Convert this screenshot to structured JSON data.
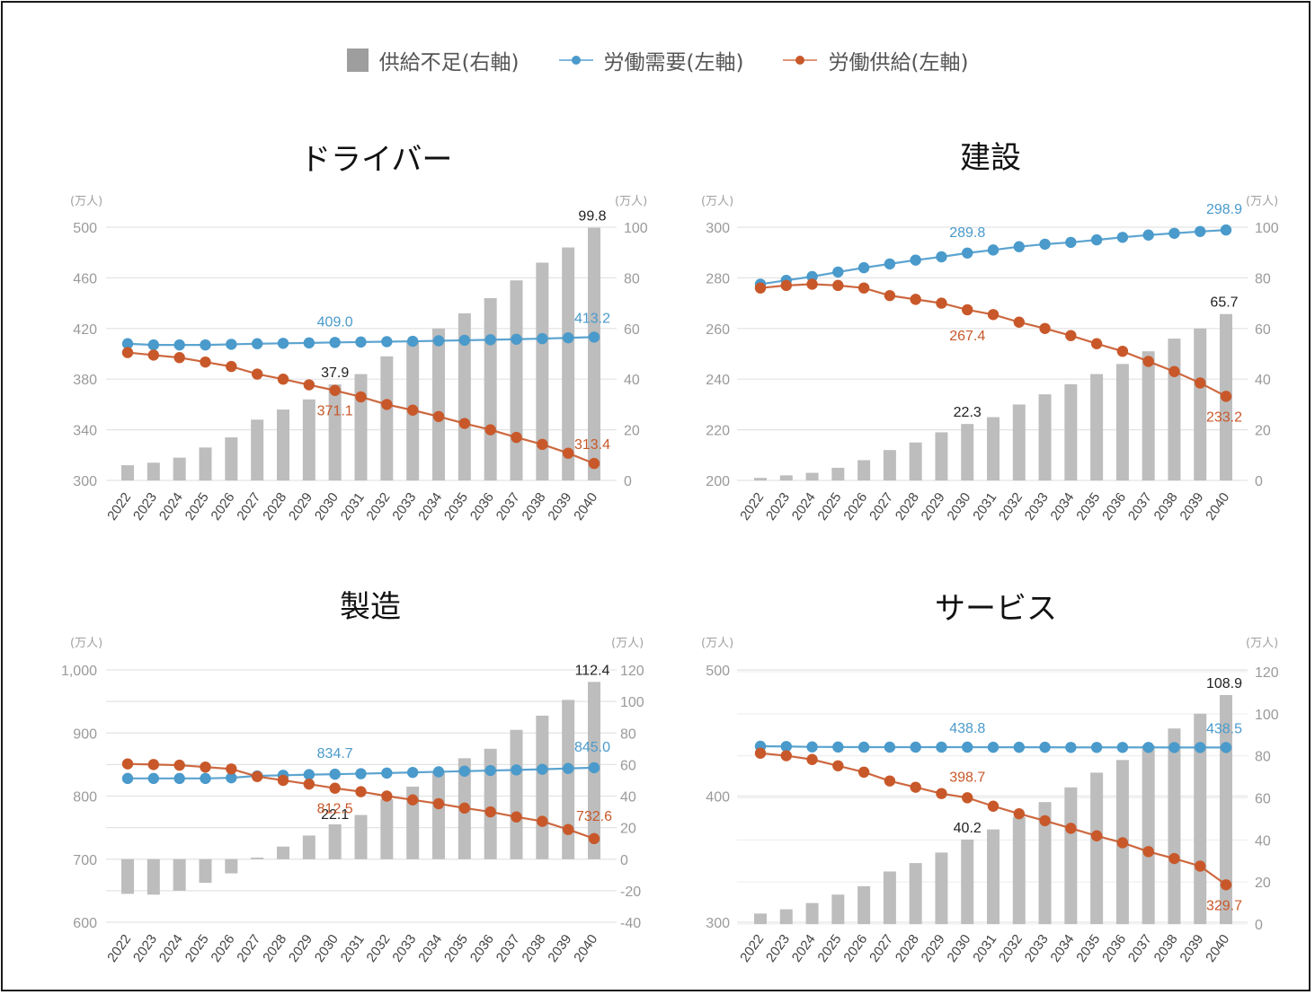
{
  "legend": [
    {
      "label": "供給不足(右軸)",
      "kind": "bar",
      "color": "#9e9e9e"
    },
    {
      "label": "労働需要(左軸)",
      "kind": "line",
      "color": "#4a9acb"
    },
    {
      "label": "労働供給(左軸)",
      "kind": "line",
      "color": "#c8582a"
    }
  ],
  "colors": {
    "bar": "#bdbdbd",
    "demand": "#4a9acb",
    "supply": "#c8582a",
    "label_dark": "#222222",
    "grid": "#e3e3e3"
  },
  "chart_data": [
    {
      "type": "bar+line",
      "title": "ドライバー",
      "left_unit": "(万人)",
      "right_unit": "(万人)",
      "categories": [
        "2022",
        "2023",
        "2024",
        "2025",
        "2026",
        "2027",
        "2028",
        "2029",
        "2030",
        "2031",
        "2032",
        "2033",
        "2034",
        "2035",
        "2036",
        "2037",
        "2038",
        "2039",
        "2040"
      ],
      "left_ylim": [
        300,
        500
      ],
      "left_ticks": [
        300,
        340,
        380,
        420,
        460,
        500
      ],
      "left_tick_labels": [
        "300",
        "340",
        "380",
        "420",
        "460",
        "500"
      ],
      "right_ylim": [
        0,
        100
      ],
      "right_ticks": [
        0,
        20,
        40,
        60,
        80,
        100
      ],
      "right_tick_labels": [
        "0",
        "20",
        "40",
        "60",
        "80",
        "100"
      ],
      "grid": true,
      "series": [
        {
          "name": "供給不足(右軸)",
          "axis": "right",
          "kind": "bar",
          "values": [
            6,
            7,
            9,
            13,
            17,
            24,
            28,
            32,
            37.9,
            42,
            49,
            55,
            60,
            66,
            72,
            79,
            86,
            92,
            99.8
          ]
        },
        {
          "name": "労働需要(左軸)",
          "axis": "left",
          "kind": "line",
          "values": [
            408,
            407,
            407,
            407,
            407.5,
            408,
            408.3,
            408.6,
            409.0,
            409.3,
            409.6,
            409.9,
            410.3,
            410.7,
            411.1,
            411.5,
            412,
            412.6,
            413.2
          ]
        },
        {
          "name": "労働供給(左軸)",
          "axis": "left",
          "kind": "line",
          "values": [
            401,
            399,
            397,
            393.5,
            390,
            384,
            380,
            375.5,
            371.1,
            366,
            360,
            355.5,
            350.5,
            345,
            340,
            334,
            328.5,
            321.5,
            313.4
          ]
        }
      ],
      "annotations": [
        {
          "series": 0,
          "index": 8,
          "text": "37.9"
        },
        {
          "series": 0,
          "index": 18,
          "text": "99.8"
        },
        {
          "series": 1,
          "index": 8,
          "text": "409.0"
        },
        {
          "series": 1,
          "index": 18,
          "text": "413.2"
        },
        {
          "series": 2,
          "index": 8,
          "text": "371.1"
        },
        {
          "series": 2,
          "index": 18,
          "text": "313.4"
        }
      ]
    },
    {
      "type": "bar+line",
      "title": "建設",
      "left_unit": "(万人)",
      "right_unit": "(万人)",
      "categories": [
        "2022",
        "2023",
        "2024",
        "2025",
        "2026",
        "2027",
        "2028",
        "2029",
        "2030",
        "2031",
        "2032",
        "2033",
        "2034",
        "2035",
        "2036",
        "2037",
        "2038",
        "2039",
        "2040"
      ],
      "left_ylim": [
        200,
        300
      ],
      "left_ticks": [
        200,
        220,
        240,
        260,
        280,
        300
      ],
      "left_tick_labels": [
        "200",
        "220",
        "240",
        "260",
        "280",
        "300"
      ],
      "right_ylim": [
        0,
        100
      ],
      "right_ticks": [
        0,
        20,
        40,
        60,
        80,
        100
      ],
      "right_tick_labels": [
        "0",
        "20",
        "40",
        "60",
        "80",
        "100"
      ],
      "grid": true,
      "series": [
        {
          "name": "供給不足(右軸)",
          "axis": "right",
          "kind": "bar",
          "values": [
            1,
            2,
            3,
            5,
            8,
            12,
            15,
            19,
            22.3,
            25,
            30,
            34,
            38,
            42,
            46,
            51,
            56,
            60,
            65.7
          ]
        },
        {
          "name": "労働需要(左軸)",
          "axis": "left",
          "kind": "line",
          "values": [
            277.5,
            279,
            280.5,
            282.3,
            284,
            285.5,
            287,
            288.3,
            289.8,
            291,
            292.3,
            293.3,
            294,
            295,
            296,
            296.9,
            297.6,
            298.3,
            298.9
          ]
        },
        {
          "name": "労働供給(左軸)",
          "axis": "left",
          "kind": "line",
          "values": [
            276,
            277,
            277.5,
            277,
            276,
            273,
            271.5,
            270,
            267.4,
            265.5,
            262.5,
            260,
            257.2,
            254,
            251,
            247,
            243,
            238.5,
            233.2
          ]
        }
      ],
      "annotations": [
        {
          "series": 0,
          "index": 8,
          "text": "22.3"
        },
        {
          "series": 0,
          "index": 18,
          "text": "65.7"
        },
        {
          "series": 1,
          "index": 8,
          "text": "289.8"
        },
        {
          "series": 1,
          "index": 18,
          "text": "298.9"
        },
        {
          "series": 2,
          "index": 8,
          "text": "267.4"
        },
        {
          "series": 2,
          "index": 18,
          "text": "233.2"
        }
      ]
    },
    {
      "type": "bar+line",
      "title": "製造",
      "left_unit": "(万人)",
      "right_unit": "(万人)",
      "categories": [
        "2022",
        "2023",
        "2024",
        "2025",
        "2026",
        "2027",
        "2028",
        "2029",
        "2030",
        "2031",
        "2032",
        "2033",
        "2034",
        "2035",
        "2036",
        "2037",
        "2038",
        "2039",
        "2040"
      ],
      "left_ylim": [
        600,
        1000
      ],
      "left_ticks": [
        600,
        700,
        800,
        900,
        1000
      ],
      "left_tick_labels": [
        "600",
        "700",
        "800",
        "900",
        "1,000"
      ],
      "left_minor_grid": [
        650,
        750,
        850,
        950
      ],
      "right_ylim": [
        -40,
        120
      ],
      "right_ticks": [
        -40,
        -20,
        0,
        20,
        40,
        60,
        80,
        100,
        120
      ],
      "right_tick_labels": [
        "-40",
        "-20",
        "0",
        "20",
        "40",
        "60",
        "80",
        "100",
        "120"
      ],
      "grid": true,
      "series": [
        {
          "name": "供給不足(右軸)",
          "axis": "right",
          "kind": "bar",
          "values": [
            -22,
            -22.5,
            -20,
            -15,
            -9,
            1,
            8,
            15,
            22.1,
            28,
            38,
            46,
            55,
            64,
            70,
            82,
            91,
            101,
            112.4
          ]
        },
        {
          "name": "労働需要(左軸)",
          "axis": "left",
          "kind": "line",
          "values": [
            828,
            828,
            828,
            828,
            829,
            832,
            833,
            834,
            834.7,
            835.5,
            836.5,
            837.5,
            838.5,
            839.5,
            840.5,
            841.5,
            842.5,
            843.8,
            845.0
          ]
        },
        {
          "name": "労働供給(左軸)",
          "axis": "left",
          "kind": "line",
          "values": [
            851,
            850,
            849,
            846,
            843,
            831,
            825,
            819,
            812.5,
            807,
            800,
            794,
            788,
            781,
            775,
            767,
            760,
            747,
            732.6
          ]
        }
      ],
      "annotations": [
        {
          "series": 0,
          "index": 8,
          "text": "22.1"
        },
        {
          "series": 0,
          "index": 18,
          "text": "112.4"
        },
        {
          "series": 1,
          "index": 8,
          "text": "834.7"
        },
        {
          "series": 1,
          "index": 18,
          "text": "845.0"
        },
        {
          "series": 2,
          "index": 8,
          "text": "812.5"
        },
        {
          "series": 2,
          "index": 18,
          "text": "732.6"
        }
      ]
    },
    {
      "type": "bar+line",
      "title": "サービス",
      "left_unit": "(万人)",
      "right_unit": "(万人)",
      "categories": [
        "2022",
        "2023",
        "2024",
        "2025",
        "2026",
        "2027",
        "2028",
        "2029",
        "2030",
        "2031",
        "2032",
        "2033",
        "2034",
        "2035",
        "2036",
        "2037",
        "2038",
        "2039",
        "2040"
      ],
      "left_ylim": [
        300,
        500
      ],
      "left_ticks": [
        300,
        400,
        500
      ],
      "left_tick_labels": [
        "300",
        "400",
        "500"
      ],
      "right_ylim": [
        0,
        120
      ],
      "right_ticks": [
        0,
        20,
        40,
        60,
        80,
        100,
        120
      ],
      "right_tick_labels": [
        "0",
        "20",
        "40",
        "60",
        "80",
        "100",
        "120"
      ],
      "grid": true,
      "series": [
        {
          "name": "供給不足(右軸)",
          "axis": "right",
          "kind": "bar",
          "values": [
            5,
            7,
            10,
            14,
            18,
            25,
            29,
            34,
            40.2,
            45,
            51,
            58,
            65,
            72,
            78,
            85,
            93,
            100,
            108.9
          ]
        },
        {
          "name": "労働需要(左軸)",
          "axis": "left",
          "kind": "line",
          "values": [
            439.5,
            439.3,
            439,
            438.9,
            438.8,
            438.8,
            438.8,
            438.8,
            438.8,
            438.7,
            438.7,
            438.7,
            438.6,
            438.6,
            438.6,
            438.6,
            438.5,
            438.5,
            438.5
          ]
        },
        {
          "name": "労働供給(左軸)",
          "axis": "left",
          "kind": "line",
          "values": [
            434,
            432,
            429,
            424,
            419,
            412,
            407,
            402,
            398.7,
            392,
            386,
            380.5,
            374.5,
            368.5,
            363,
            356,
            350.5,
            344.5,
            329.7
          ]
        }
      ],
      "annotations": [
        {
          "series": 0,
          "index": 8,
          "text": "40.2"
        },
        {
          "series": 0,
          "index": 18,
          "text": "108.9"
        },
        {
          "series": 1,
          "index": 8,
          "text": "438.8"
        },
        {
          "series": 1,
          "index": 18,
          "text": "438.5"
        },
        {
          "series": 2,
          "index": 8,
          "text": "398.7"
        },
        {
          "series": 2,
          "index": 18,
          "text": "329.7"
        }
      ]
    }
  ]
}
